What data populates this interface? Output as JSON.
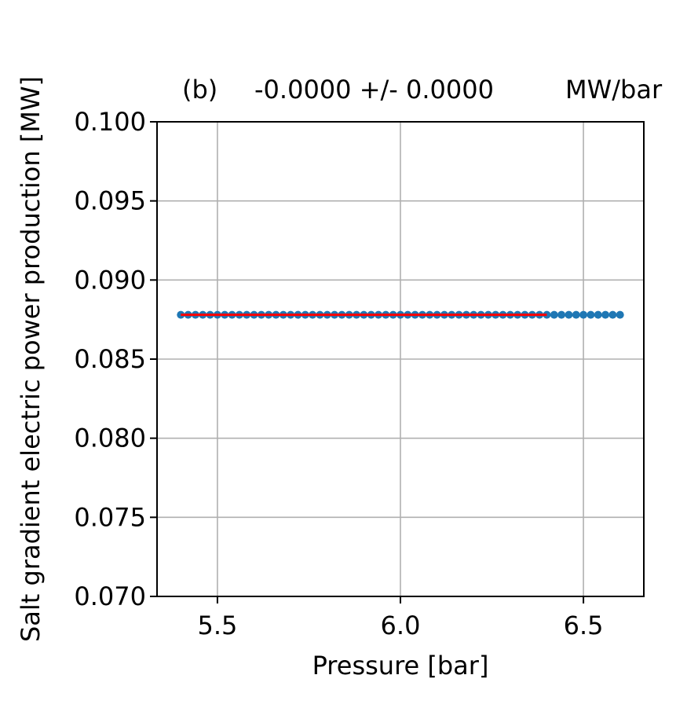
{
  "chart_data": {
    "type": "scatter",
    "title_parts": [
      "(b)",
      "-0.0000 +/- 0.0000",
      "MW/bar"
    ],
    "xlabel": "Pressure [bar]",
    "ylabel": "Salt gradient electric power production [MW]",
    "xlim": [
      5.335,
      6.665
    ],
    "ylim": [
      0.07,
      0.1
    ],
    "xticks": [
      5.5,
      6.0,
      6.5
    ],
    "xtick_labels": [
      "5.5",
      "6.0",
      "6.5"
    ],
    "yticks": [
      0.07,
      0.075,
      0.08,
      0.085,
      0.09,
      0.095,
      0.1
    ],
    "ytick_labels": [
      "0.070",
      "0.075",
      "0.080",
      "0.085",
      "0.090",
      "0.095",
      "0.100"
    ],
    "grid": true,
    "series": [
      {
        "kind": "scatter",
        "color": "#1f77b4",
        "x_range": [
          5.4,
          6.6
        ],
        "n_points": 61,
        "y_value": 0.0878
      },
      {
        "kind": "line",
        "color": "#ff0000",
        "x": [
          5.4,
          6.4
        ],
        "y": [
          0.0878,
          0.0878
        ]
      }
    ]
  }
}
